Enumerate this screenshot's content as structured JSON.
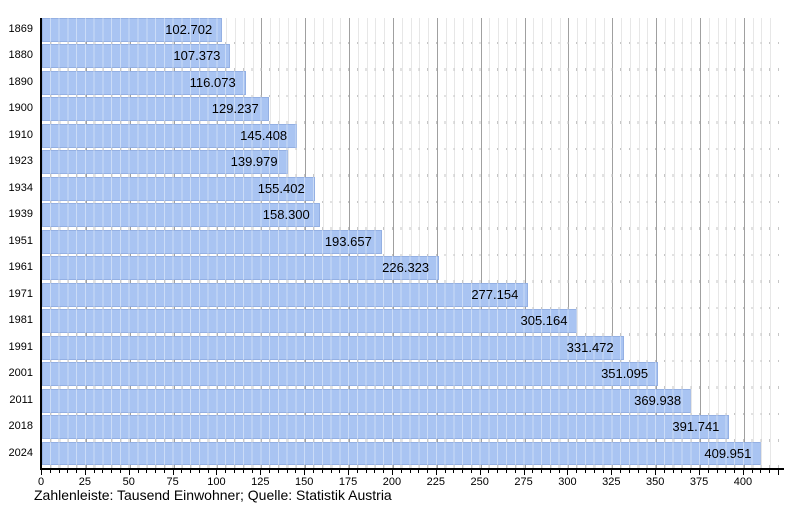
{
  "chart_data": {
    "type": "bar",
    "orientation": "horizontal",
    "title": "",
    "caption": "Zahlenleiste: Tausend Einwohner; Quelle: Statistik Austria",
    "categories": [
      "1869",
      "1880",
      "1890",
      "1900",
      "1910",
      "1923",
      "1934",
      "1939",
      "1951",
      "1961",
      "1971",
      "1981",
      "1991",
      "2001",
      "2011",
      "2018",
      "2024"
    ],
    "values": [
      102.702,
      107.373,
      116.073,
      129.237,
      145.408,
      139.979,
      155.402,
      158.3,
      193.657,
      226.323,
      277.154,
      305.164,
      331.472,
      351.095,
      369.938,
      391.741,
      409.951
    ],
    "value_labels": [
      "102.702",
      "107.373",
      "116.073",
      "129.237",
      "145.408",
      "139.979",
      "155.402",
      "158.300",
      "193.657",
      "226.323",
      "277.154",
      "305.164",
      "331.472",
      "351.095",
      "369.938",
      "391.741",
      "409.951"
    ],
    "unit": "Tausend Einwohner",
    "source": "Statistik Austria",
    "axis": {
      "min": 0,
      "max": 420,
      "minor_step": 5,
      "major_step": 25,
      "x_tick_labels": [
        0,
        25,
        50,
        75,
        100,
        125,
        150,
        175,
        200,
        225,
        250,
        275,
        300,
        325,
        350,
        375,
        400
      ]
    },
    "legend": "none",
    "grid": "vertical",
    "colors": {
      "bar_fill": "#a9c4f2",
      "bar_edge": "rgba(110,140,200,0.35)",
      "bar_stripe": "rgba(255,255,255,0.40)",
      "grid_major": "#a0a0a0",
      "grid_minor": "#e7e7e7",
      "gap_dash": "#c6c6c6",
      "axis": "#000000",
      "text": "#000000"
    }
  }
}
